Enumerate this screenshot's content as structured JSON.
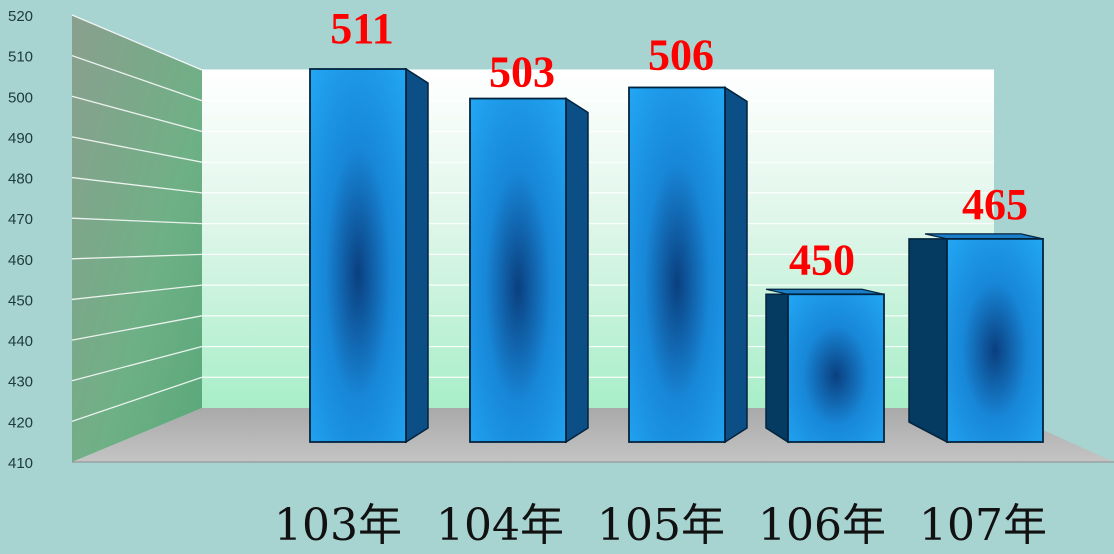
{
  "chart_data": {
    "type": "bar",
    "categories": [
      "103年",
      "104年",
      "105年",
      "106年",
      "107年"
    ],
    "values": [
      511,
      503,
      506,
      450,
      465
    ],
    "data_labels": [
      "511",
      "503",
      "506",
      "450",
      "465"
    ],
    "yticks": [
      "410",
      "420",
      "430",
      "440",
      "450",
      "460",
      "470",
      "480",
      "490",
      "500",
      "510",
      "520"
    ],
    "ylim": [
      410,
      520
    ],
    "title": "",
    "xlabel": "",
    "ylabel": "",
    "grid": true,
    "legend": "none",
    "colors": {
      "background": "#a7d3d1",
      "bar_front": "#1e9be8",
      "bar_side": "#0b4f86",
      "bar_dark": "#053a61",
      "label": "#ff0000",
      "floor": "#b9b9b9",
      "wall_side": "#7fb08d",
      "wall_back": "#c9f1d8"
    }
  }
}
